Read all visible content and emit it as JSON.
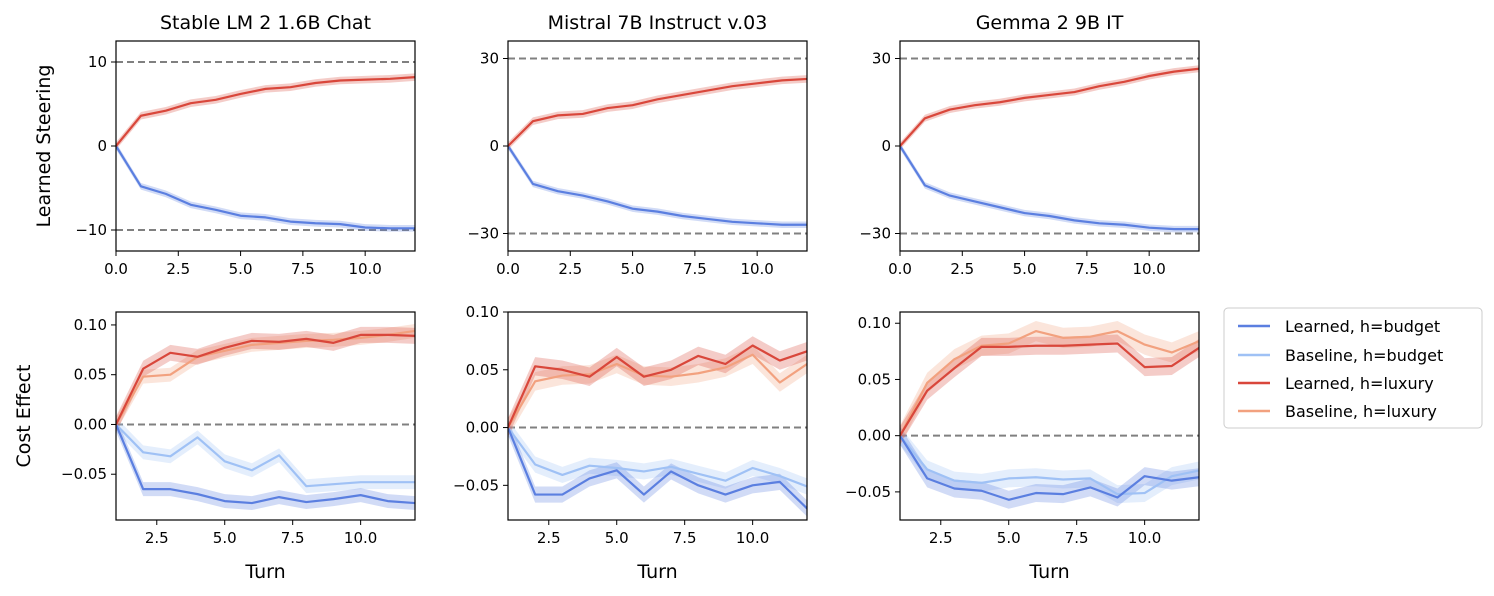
{
  "figure": {
    "ylabels": [
      "Learned Steering",
      "Cost Effect"
    ],
    "xlabel": "Turn"
  },
  "legend": {
    "placement": "right",
    "entries": [
      {
        "label": "Learned, h=budget",
        "color": "#5b7fe0"
      },
      {
        "label": "Baseline, h=budget",
        "color": "#9fc1f5"
      },
      {
        "label": "Learned, h=luxury",
        "color": "#d9473b"
      },
      {
        "label": "Baseline, h=luxury",
        "color": "#f2a17f"
      }
    ]
  },
  "colors": {
    "learned_budget": "#5b7fe0",
    "baseline_budget": "#9fc1f5",
    "learned_luxury": "#d9473b",
    "baseline_luxury": "#f2a17f",
    "reference_line": "#808080"
  },
  "chart_data": [
    {
      "type": "line",
      "title": "Stable LM 2 1.6B Chat",
      "xlabel": "",
      "ylabel": "Learned Steering",
      "xlim": [
        0,
        12
      ],
      "ylim": [
        -12.5,
        12.5
      ],
      "xticks": [
        0,
        2.5,
        5,
        7.5,
        10
      ],
      "xtick_labels": [
        "0.0",
        "2.5",
        "5.0",
        "7.5",
        "10.0"
      ],
      "yticks": [
        -10,
        0,
        10
      ],
      "ytick_labels": [
        "−10",
        "0",
        "10"
      ],
      "hlines": [
        -10,
        10
      ],
      "series": [
        {
          "name": "Learned, h=budget",
          "x": [
            0,
            1,
            2,
            3,
            4,
            5,
            6,
            7,
            8,
            9,
            10,
            11,
            12
          ],
          "y": [
            0,
            -4.8,
            -5.7,
            -7.0,
            -7.6,
            -8.3,
            -8.5,
            -9.0,
            -9.2,
            -9.3,
            -9.7,
            -9.8,
            -9.8
          ],
          "band": 0.4
        },
        {
          "name": "Learned, h=luxury",
          "x": [
            0,
            1,
            2,
            3,
            4,
            5,
            6,
            7,
            8,
            9,
            10,
            11,
            12
          ],
          "y": [
            0,
            3.6,
            4.2,
            5.1,
            5.5,
            6.2,
            6.8,
            7.0,
            7.5,
            7.8,
            7.9,
            8.0,
            8.2
          ],
          "band": 0.45
        }
      ]
    },
    {
      "type": "line",
      "title": "Mistral 7B Instruct v.03",
      "xlabel": "",
      "ylabel": "",
      "xlim": [
        0,
        12
      ],
      "ylim": [
        -36,
        36
      ],
      "xticks": [
        0,
        2.5,
        5,
        7.5,
        10
      ],
      "xtick_labels": [
        "0.0",
        "2.5",
        "5.0",
        "7.5",
        "10.0"
      ],
      "yticks": [
        -30,
        0,
        30
      ],
      "ytick_labels": [
        "−30",
        "0",
        "30"
      ],
      "hlines": [
        -30,
        30
      ],
      "series": [
        {
          "name": "Learned, h=budget",
          "x": [
            0,
            1,
            2,
            3,
            4,
            5,
            6,
            7,
            8,
            9,
            10,
            11,
            12
          ],
          "y": [
            0,
            -13,
            -15.5,
            -17,
            -19,
            -21.5,
            -22.5,
            -24,
            -25,
            -26,
            -26.5,
            -27,
            -27
          ],
          "band": 1.1
        },
        {
          "name": "Learned, h=luxury",
          "x": [
            0,
            1,
            2,
            3,
            4,
            5,
            6,
            7,
            8,
            9,
            10,
            11,
            12
          ],
          "y": [
            0,
            8.5,
            10.5,
            11,
            13,
            14,
            16,
            17.5,
            19,
            20.5,
            21.5,
            22.5,
            23
          ],
          "band": 1.3
        }
      ]
    },
    {
      "type": "line",
      "title": "Gemma 2 9B IT",
      "xlabel": "",
      "ylabel": "",
      "xlim": [
        0,
        12
      ],
      "ylim": [
        -36,
        36
      ],
      "xticks": [
        0,
        2.5,
        5,
        7.5,
        10
      ],
      "xtick_labels": [
        "0.0",
        "2.5",
        "5.0",
        "7.5",
        "10.0"
      ],
      "yticks": [
        -30,
        0,
        30
      ],
      "ytick_labels": [
        "−30",
        "0",
        "30"
      ],
      "hlines": [
        -30,
        30
      ],
      "series": [
        {
          "name": "Learned, h=budget",
          "x": [
            0,
            1,
            2,
            3,
            4,
            5,
            6,
            7,
            8,
            9,
            10,
            11,
            12
          ],
          "y": [
            0,
            -13.5,
            -17,
            -19,
            -21,
            -23,
            -24,
            -25.5,
            -26.5,
            -27,
            -28,
            -28.5,
            -28.5
          ],
          "band": 1.1
        },
        {
          "name": "Learned, h=luxury",
          "x": [
            0,
            1,
            2,
            3,
            4,
            5,
            6,
            7,
            8,
            9,
            10,
            11,
            12
          ],
          "y": [
            0,
            9.5,
            12.5,
            14,
            15,
            16.5,
            17.5,
            18.5,
            20.5,
            22,
            24,
            25.5,
            26.5
          ],
          "band": 1.2
        }
      ]
    },
    {
      "type": "line",
      "title": "",
      "xlabel": "Turn",
      "ylabel": "Cost Effect",
      "xlim": [
        1,
        12
      ],
      "ylim": [
        -0.096,
        0.113
      ],
      "xticks": [
        2.5,
        5,
        7.5,
        10
      ],
      "xtick_labels": [
        "2.5",
        "5.0",
        "7.5",
        "10.0"
      ],
      "yticks": [
        -0.05,
        0,
        0.05,
        0.1
      ],
      "ytick_labels": [
        "−0.05",
        "0.00",
        "0.05",
        "0.10"
      ],
      "hlines": [
        0
      ],
      "series": [
        {
          "name": "Baseline, h=budget",
          "x": [
            1,
            2,
            3,
            4,
            5,
            6,
            7,
            8,
            9,
            10,
            11,
            12
          ],
          "y": [
            0,
            -0.028,
            -0.032,
            -0.013,
            -0.037,
            -0.046,
            -0.031,
            -0.062,
            -0.06,
            -0.058,
            -0.058,
            -0.058
          ],
          "band": 0.007
        },
        {
          "name": "Learned, h=budget",
          "x": [
            1,
            2,
            3,
            4,
            5,
            6,
            7,
            8,
            9,
            10,
            11,
            12
          ],
          "y": [
            0,
            -0.065,
            -0.065,
            -0.07,
            -0.077,
            -0.079,
            -0.073,
            -0.078,
            -0.075,
            -0.071,
            -0.077,
            -0.079
          ],
          "band": 0.007
        },
        {
          "name": "Baseline, h=luxury",
          "x": [
            1,
            2,
            3,
            4,
            5,
            6,
            7,
            8,
            9,
            10,
            11,
            12
          ],
          "y": [
            0,
            0.048,
            0.05,
            0.068,
            0.074,
            0.08,
            0.082,
            0.084,
            0.085,
            0.087,
            0.09,
            0.094
          ],
          "band": 0.007
        },
        {
          "name": "Learned, h=luxury",
          "x": [
            1,
            2,
            3,
            4,
            5,
            6,
            7,
            8,
            9,
            10,
            11,
            12
          ],
          "y": [
            0,
            0.056,
            0.072,
            0.068,
            0.077,
            0.084,
            0.083,
            0.086,
            0.082,
            0.09,
            0.09,
            0.089
          ],
          "band": 0.008
        }
      ]
    },
    {
      "type": "line",
      "title": "",
      "xlabel": "Turn",
      "ylabel": "",
      "xlim": [
        1,
        12
      ],
      "ylim": [
        -0.08,
        0.1
      ],
      "xticks": [
        2.5,
        5,
        7.5,
        10
      ],
      "xtick_labels": [
        "2.5",
        "5.0",
        "7.5",
        "10.0"
      ],
      "yticks": [
        -0.05,
        0,
        0.05,
        0.1
      ],
      "ytick_labels": [
        "−0.05",
        "0.00",
        "0.05",
        "0.10"
      ],
      "hlines": [
        0
      ],
      "series": [
        {
          "name": "Baseline, h=budget",
          "x": [
            1,
            2,
            3,
            4,
            5,
            6,
            7,
            8,
            9,
            10,
            11,
            12
          ],
          "y": [
            0,
            -0.032,
            -0.041,
            -0.033,
            -0.035,
            -0.038,
            -0.034,
            -0.04,
            -0.046,
            -0.035,
            -0.042,
            -0.051
          ],
          "band": 0.007
        },
        {
          "name": "Learned, h=budget",
          "x": [
            1,
            2,
            3,
            4,
            5,
            6,
            7,
            8,
            9,
            10,
            11,
            12
          ],
          "y": [
            0,
            -0.058,
            -0.058,
            -0.044,
            -0.037,
            -0.058,
            -0.038,
            -0.05,
            -0.058,
            -0.05,
            -0.047,
            -0.07
          ],
          "band": 0.007
        },
        {
          "name": "Baseline, h=luxury",
          "x": [
            1,
            2,
            3,
            4,
            5,
            6,
            7,
            8,
            9,
            10,
            11,
            12
          ],
          "y": [
            0,
            0.04,
            0.045,
            0.046,
            0.055,
            0.045,
            0.044,
            0.047,
            0.052,
            0.063,
            0.039,
            0.055
          ],
          "band": 0.008
        },
        {
          "name": "Learned, h=luxury",
          "x": [
            1,
            2,
            3,
            4,
            5,
            6,
            7,
            8,
            9,
            10,
            11,
            12
          ],
          "y": [
            0,
            0.053,
            0.05,
            0.044,
            0.061,
            0.044,
            0.05,
            0.062,
            0.055,
            0.071,
            0.058,
            0.066
          ],
          "band": 0.008
        }
      ]
    },
    {
      "type": "line",
      "title": "",
      "xlabel": "Turn",
      "ylabel": "",
      "xlim": [
        1,
        12
      ],
      "ylim": [
        -0.075,
        0.11
      ],
      "xticks": [
        2.5,
        5,
        7.5,
        10
      ],
      "xtick_labels": [
        "2.5",
        "5.0",
        "7.5",
        "10.0"
      ],
      "yticks": [
        -0.05,
        0,
        0.05,
        0.1
      ],
      "ytick_labels": [
        "−0.05",
        "0.00",
        "0.05",
        "0.10"
      ],
      "hlines": [
        0
      ],
      "series": [
        {
          "name": "Baseline, h=budget",
          "x": [
            1,
            2,
            3,
            4,
            5,
            6,
            7,
            8,
            9,
            10,
            11,
            12
          ],
          "y": [
            0,
            -0.03,
            -0.04,
            -0.042,
            -0.038,
            -0.037,
            -0.039,
            -0.038,
            -0.052,
            -0.051,
            -0.036,
            -0.031
          ],
          "band": 0.008
        },
        {
          "name": "Learned, h=budget",
          "x": [
            1,
            2,
            3,
            4,
            5,
            6,
            7,
            8,
            9,
            10,
            11,
            12
          ],
          "y": [
            0,
            -0.038,
            -0.047,
            -0.049,
            -0.057,
            -0.051,
            -0.052,
            -0.046,
            -0.055,
            -0.036,
            -0.04,
            -0.037
          ],
          "band": 0.008
        },
        {
          "name": "Baseline, h=luxury",
          "x": [
            1,
            2,
            3,
            4,
            5,
            6,
            7,
            8,
            9,
            10,
            11,
            12
          ],
          "y": [
            0,
            0.047,
            0.068,
            0.08,
            0.082,
            0.093,
            0.087,
            0.088,
            0.093,
            0.081,
            0.074,
            0.084
          ],
          "band": 0.009
        },
        {
          "name": "Learned, h=luxury",
          "x": [
            1,
            2,
            3,
            4,
            5,
            6,
            7,
            8,
            9,
            10,
            11,
            12
          ],
          "y": [
            0,
            0.04,
            0.06,
            0.079,
            0.079,
            0.08,
            0.08,
            0.081,
            0.082,
            0.061,
            0.062,
            0.078
          ],
          "band": 0.008
        }
      ]
    }
  ]
}
